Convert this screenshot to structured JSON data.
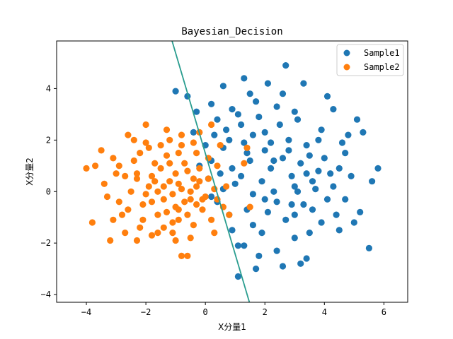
{
  "chart_data": {
    "type": "scatter",
    "title": "Bayesian_Decision",
    "xlabel": "X分量1",
    "ylabel": "X分量2",
    "xlim": [
      -5.0,
      6.8
    ],
    "ylim": [
      -4.3,
      5.85
    ],
    "xticks": [
      -4,
      -2,
      0,
      2,
      4,
      6
    ],
    "yticks": [
      -4,
      -2,
      0,
      2,
      4
    ],
    "grid": false,
    "legend_position": "top-right",
    "series": [
      {
        "name": "Sample1",
        "color": "#1f77b4",
        "points": [
          [
            -1.0,
            3.9
          ],
          [
            -0.6,
            3.7
          ],
          [
            0.6,
            4.1
          ],
          [
            1.3,
            4.4
          ],
          [
            2.1,
            4.2
          ],
          [
            2.7,
            4.9
          ],
          [
            3.3,
            4.2
          ],
          [
            4.1,
            3.7
          ],
          [
            4.3,
            3.2
          ],
          [
            4.8,
            2.2
          ],
          [
            5.1,
            2.8
          ],
          [
            5.3,
            2.3
          ],
          [
            5.8,
            0.9
          ],
          [
            5.6,
            0.4
          ],
          [
            5.2,
            -0.8
          ],
          [
            5.0,
            -1.2
          ],
          [
            5.5,
            -2.2
          ],
          [
            4.7,
            -0.3
          ],
          [
            4.4,
            -0.9
          ],
          [
            3.9,
            -1.2
          ],
          [
            3.5,
            -1.6
          ],
          [
            3.2,
            -2.8
          ],
          [
            3.4,
            -2.6
          ],
          [
            2.6,
            -2.9
          ],
          [
            2.4,
            -2.3
          ],
          [
            1.7,
            -3.0
          ],
          [
            1.1,
            -3.3
          ],
          [
            1.3,
            -2.1
          ],
          [
            1.1,
            -2.1
          ],
          [
            0.9,
            -1.5
          ],
          [
            1.6,
            -1.3
          ],
          [
            2.1,
            -0.8
          ],
          [
            2.9,
            -0.5
          ],
          [
            3.7,
            0.1
          ],
          [
            4.5,
            0.9
          ],
          [
            4.7,
            1.5
          ],
          [
            3.8,
            2.0
          ],
          [
            3.1,
            2.8
          ],
          [
            2.4,
            3.3
          ],
          [
            1.7,
            3.5
          ],
          [
            0.9,
            3.2
          ],
          [
            0.2,
            3.4
          ],
          [
            -0.3,
            3.1
          ],
          [
            0.4,
            2.8
          ],
          [
            1.2,
            2.6
          ],
          [
            2.0,
            2.3
          ],
          [
            2.8,
            2.0
          ],
          [
            3.4,
            1.8
          ],
          [
            4.0,
            1.3
          ],
          [
            4.2,
            0.7
          ],
          [
            3.6,
            0.4
          ],
          [
            3.0,
            0.2
          ],
          [
            2.3,
            0.0
          ],
          [
            1.6,
            -0.1
          ],
          [
            1.0,
            0.3
          ],
          [
            0.5,
            0.7
          ],
          [
            0.2,
            1.2
          ],
          [
            0.6,
            1.7
          ],
          [
            1.3,
            1.9
          ],
          [
            2.0,
            1.6
          ],
          [
            2.6,
            1.3
          ],
          [
            3.2,
            1.1
          ],
          [
            3.8,
            0.8
          ],
          [
            4.3,
            0.2
          ],
          [
            3.3,
            -0.5
          ],
          [
            2.7,
            -1.1
          ],
          [
            1.9,
            -1.6
          ],
          [
            1.4,
            -0.7
          ],
          [
            0.8,
            -0.9
          ],
          [
            0.4,
            -0.4
          ],
          [
            0.9,
            0.9
          ],
          [
            1.5,
            1.2
          ],
          [
            2.2,
            0.9
          ],
          [
            2.9,
            0.6
          ],
          [
            3.5,
            1.4
          ],
          [
            2.5,
            2.6
          ],
          [
            1.8,
            2.9
          ],
          [
            1.1,
            3.0
          ],
          [
            0.3,
            2.2
          ],
          [
            0.7,
            2.4
          ],
          [
            1.9,
            0.4
          ],
          [
            2.4,
            -0.4
          ],
          [
            3.0,
            -0.9
          ],
          [
            3.6,
            -0.7
          ],
          [
            4.1,
            -0.3
          ],
          [
            2.2,
            1.9
          ],
          [
            1.6,
            2.2
          ],
          [
            2.8,
            1.6
          ],
          [
            3.9,
            2.4
          ],
          [
            4.6,
            1.9
          ],
          [
            4.9,
            0.6
          ],
          [
            3.4,
            0.7
          ],
          [
            2.0,
            -0.3
          ],
          [
            1.2,
            0.6
          ],
          [
            0.6,
            0.1
          ],
          [
            0.1,
            0.5
          ],
          [
            -0.2,
            1.0
          ],
          [
            0.0,
            1.8
          ],
          [
            -0.4,
            2.3
          ],
          [
            0.2,
            -0.2
          ],
          [
            1.8,
            -2.5
          ],
          [
            3.0,
            -1.8
          ],
          [
            4.5,
            -1.5
          ],
          [
            2.6,
            3.8
          ],
          [
            3.0,
            3.1
          ],
          [
            1.5,
            3.8
          ],
          [
            0.8,
            2.0
          ],
          [
            1.4,
            1.5
          ],
          [
            2.3,
            1.2
          ],
          [
            3.1,
            0.0
          ]
        ]
      },
      {
        "name": "Sample2",
        "color": "#ff7f0e",
        "points": [
          [
            -4.0,
            0.9
          ],
          [
            -3.8,
            -1.2
          ],
          [
            -3.2,
            -1.9
          ],
          [
            -3.1,
            1.3
          ],
          [
            -2.9,
            -0.4
          ],
          [
            -2.6,
            2.2
          ],
          [
            -2.3,
            0.5
          ],
          [
            -2.0,
            2.6
          ],
          [
            -1.8,
            -1.7
          ],
          [
            -1.3,
            2.4
          ],
          [
            -1.1,
            -1.6
          ],
          [
            -0.9,
            1.5
          ],
          [
            -0.6,
            -2.5
          ],
          [
            -0.4,
            1.9
          ],
          [
            -0.2,
            2.3
          ],
          [
            0.2,
            2.6
          ],
          [
            0.3,
            -1.6
          ],
          [
            0.5,
            1.8
          ],
          [
            0.7,
            0.2
          ],
          [
            0.8,
            -0.9
          ],
          [
            1.4,
            1.7
          ],
          [
            1.5,
            -0.6
          ],
          [
            -0.8,
            -2.5
          ],
          [
            -2.7,
            0.6
          ],
          [
            -3.4,
            0.3
          ],
          [
            -2.2,
            -1.4
          ],
          [
            -1.7,
            1.1
          ],
          [
            -1.4,
            -0.3
          ],
          [
            -1.2,
            0.4
          ],
          [
            -1.0,
            -0.6
          ],
          [
            -0.8,
            0.1
          ],
          [
            -0.6,
            0.8
          ],
          [
            -0.5,
            -0.3
          ],
          [
            -0.3,
            0.2
          ],
          [
            -0.1,
            -0.7
          ],
          [
            0.1,
            0.5
          ],
          [
            -1.5,
            0.9
          ],
          [
            -1.9,
            0.2
          ],
          [
            -2.1,
            -0.5
          ],
          [
            -2.4,
            1.2
          ],
          [
            -2.8,
            -0.9
          ],
          [
            -1.6,
            -0.9
          ],
          [
            -1.3,
            1.4
          ],
          [
            -0.9,
            -1.1
          ],
          [
            -0.7,
            1.1
          ],
          [
            -0.4,
            -1.3
          ],
          [
            -0.2,
            0.9
          ],
          [
            0.0,
            -0.2
          ],
          [
            0.3,
            0.1
          ],
          [
            -1.1,
            -0.1
          ],
          [
            -1.4,
            0.2
          ],
          [
            -1.8,
            0.6
          ],
          [
            -2.0,
            -0.1
          ],
          [
            -2.5,
            0.0
          ],
          [
            -3.0,
            0.7
          ],
          [
            -3.5,
            1.6
          ],
          [
            -2.4,
            2.0
          ],
          [
            -1.9,
            1.7
          ],
          [
            -1.2,
            2.0
          ],
          [
            -0.8,
            2.2
          ],
          [
            -0.3,
            1.5
          ],
          [
            0.4,
            1.0
          ],
          [
            0.6,
            -0.6
          ],
          [
            0.2,
            -1.1
          ],
          [
            -0.5,
            -1.8
          ],
          [
            -1.0,
            -1.9
          ],
          [
            -1.6,
            -1.6
          ],
          [
            -2.1,
            -1.1
          ],
          [
            -2.6,
            -0.7
          ],
          [
            -3.3,
            -0.2
          ],
          [
            -1.7,
            0.4
          ],
          [
            -1.0,
            0.7
          ],
          [
            -0.7,
            -0.4
          ],
          [
            -0.2,
            0.4
          ],
          [
            -1.3,
            -0.8
          ],
          [
            -1.5,
            1.8
          ],
          [
            -0.9,
            0.3
          ],
          [
            -0.6,
            -0.9
          ],
          [
            -0.1,
            -0.3
          ],
          [
            -1.2,
            1.1
          ],
          [
            -2.2,
            1.5
          ],
          [
            -2.9,
            1.0
          ],
          [
            -3.1,
            -1.1
          ],
          [
            -2.7,
            -1.6
          ],
          [
            -2.3,
            -1.9
          ],
          [
            -1.4,
            -1.4
          ],
          [
            -0.8,
            1.8
          ],
          [
            -0.4,
            0.5
          ],
          [
            0.1,
            1.3
          ],
          [
            -1.8,
            -0.4
          ],
          [
            -2.3,
            0.7
          ],
          [
            -0.5,
            0.0
          ],
          [
            -1.1,
            -1.2
          ],
          [
            -1.6,
            0.0
          ],
          [
            -0.9,
            -0.7
          ],
          [
            -0.3,
            -0.5
          ],
          [
            0.4,
            -0.3
          ],
          [
            1.3,
            1.1
          ],
          [
            -2.0,
            1.9
          ],
          [
            -3.7,
            1.0
          ]
        ]
      }
    ],
    "decision_line": {
      "color": "#2a9d8f",
      "points": [
        [
          -1.12,
          5.85
        ],
        [
          1.48,
          -4.3
        ]
      ]
    }
  }
}
